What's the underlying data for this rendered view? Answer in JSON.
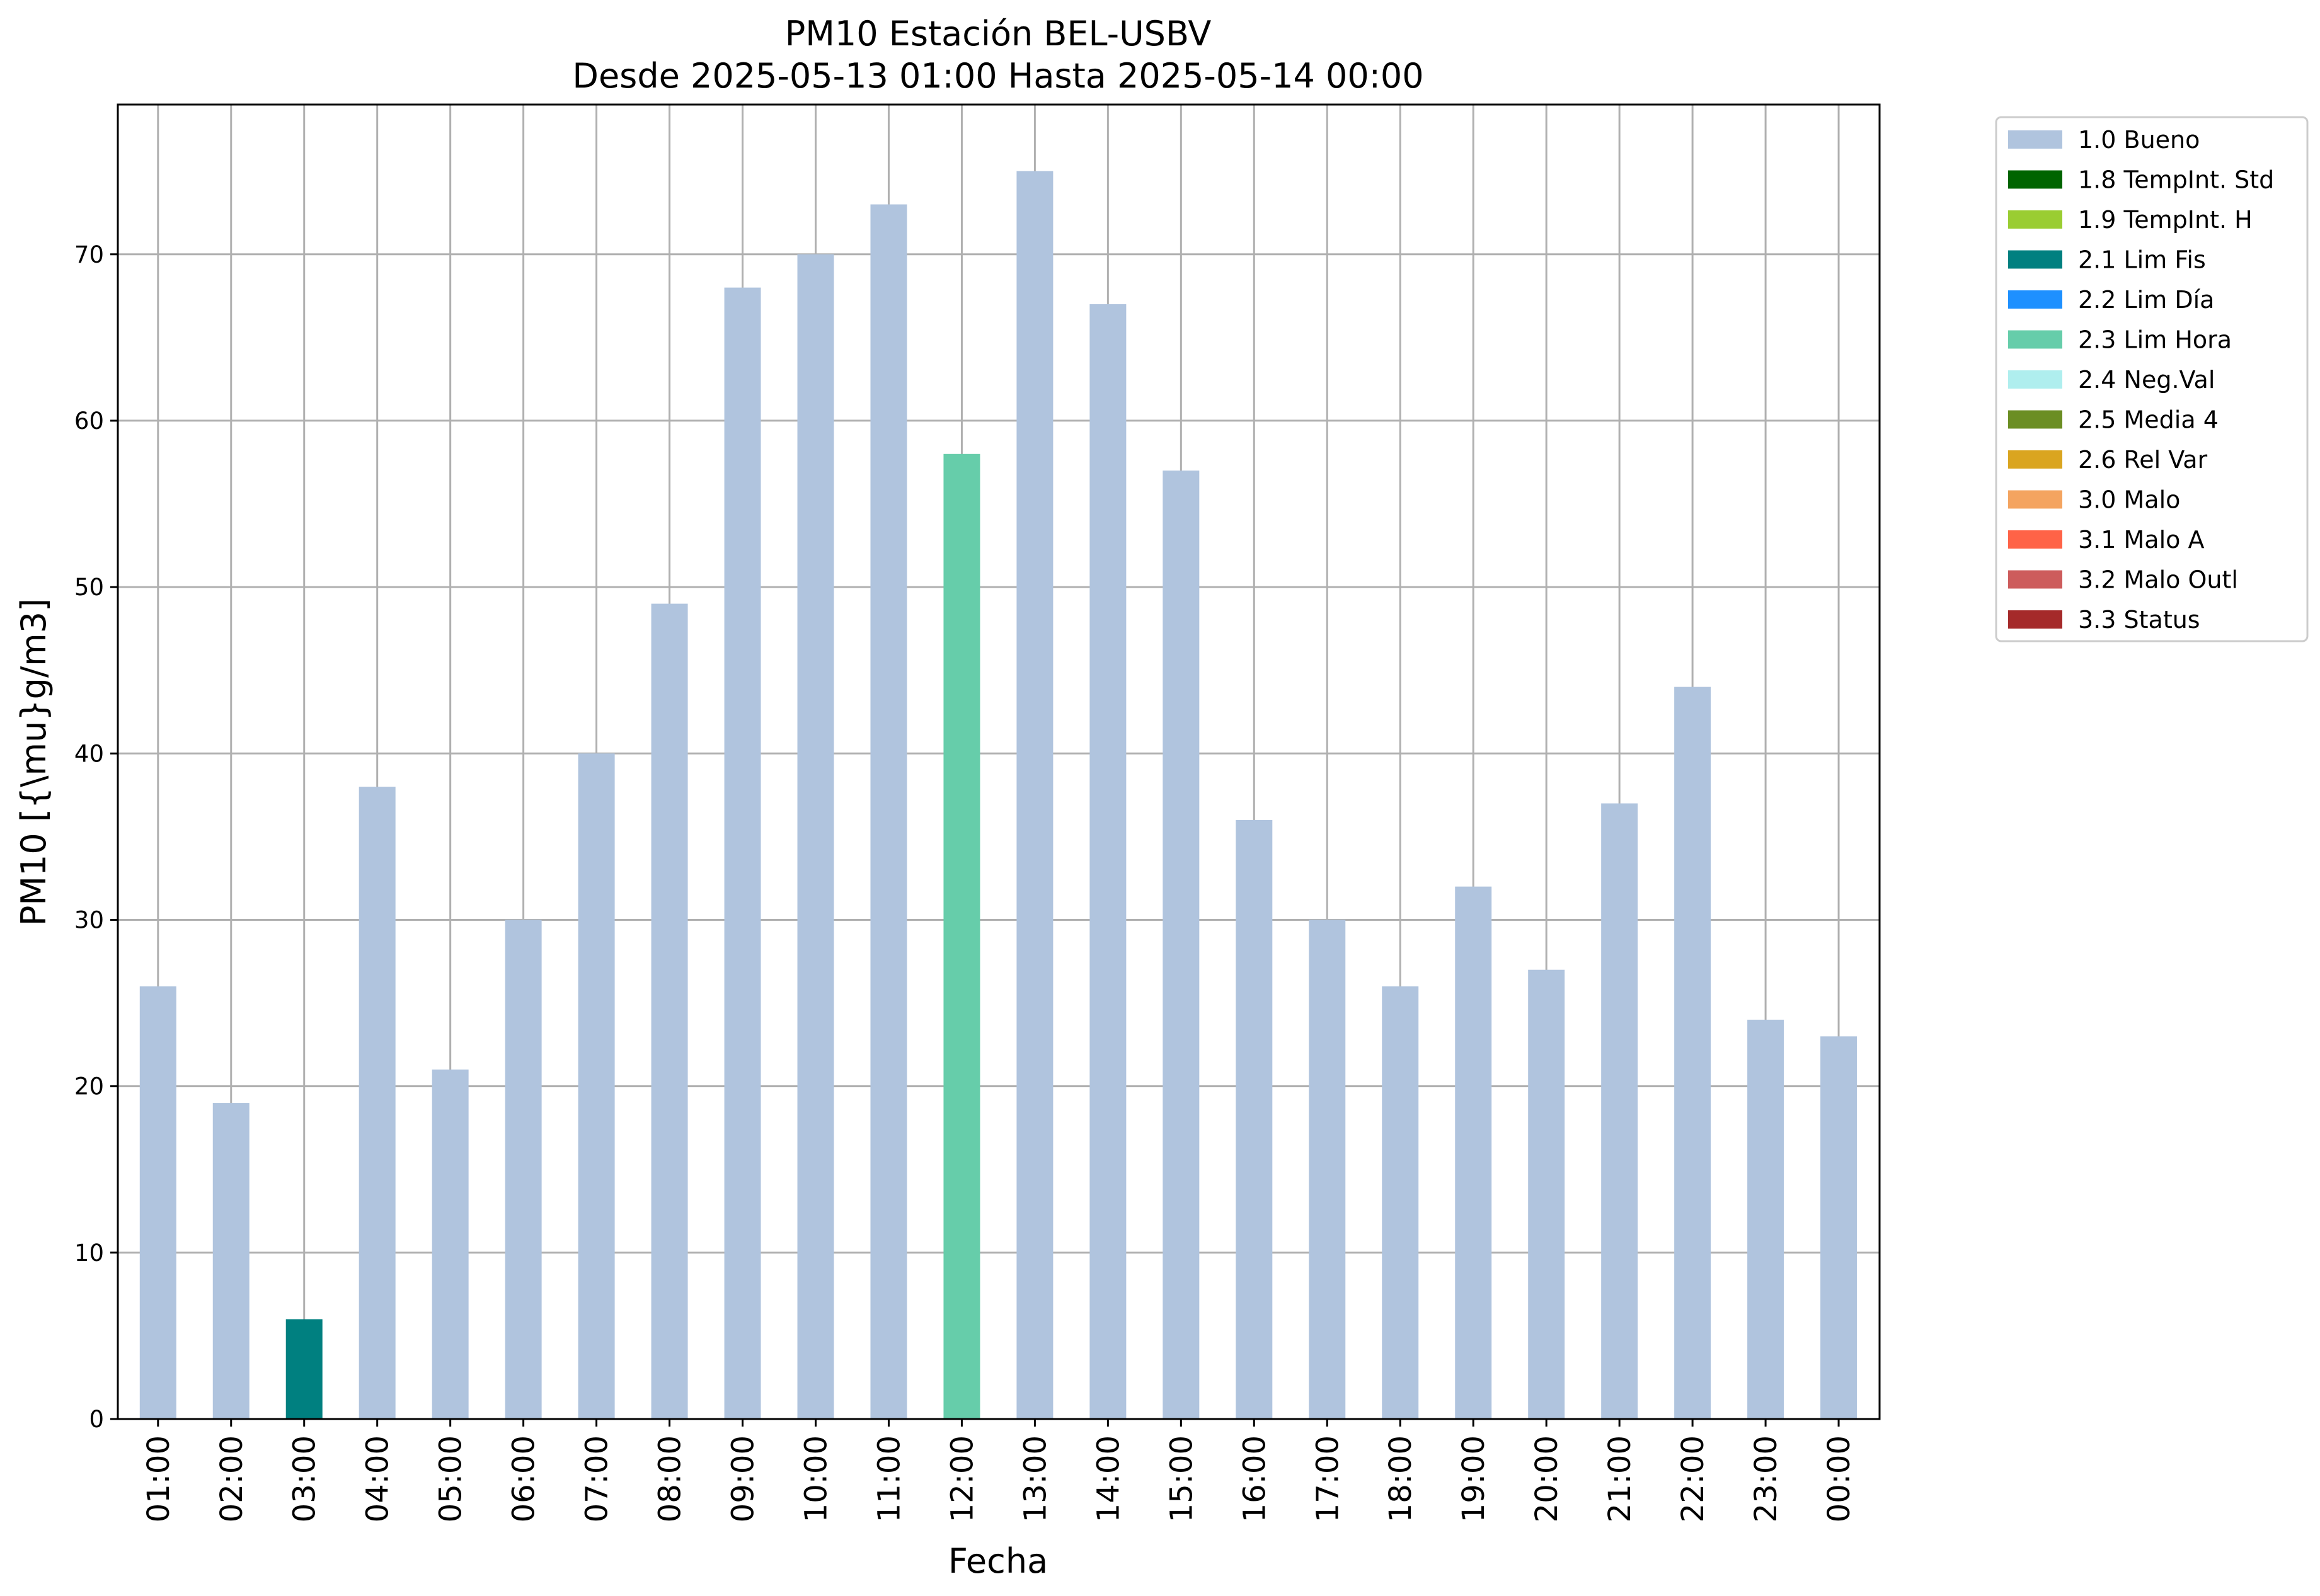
{
  "chart_data": {
    "type": "bar",
    "title": "PM10 Estación BEL-USBV",
    "subtitle": "Desde 2025-05-13 01:00 Hasta 2025-05-14 00:00",
    "xlabel": "Fecha",
    "ylabel": "PM10 [{\\mu}g/m3]",
    "ylim": [
      0,
      79
    ],
    "yticks": [
      0,
      10,
      20,
      30,
      40,
      50,
      60,
      70
    ],
    "grid": true,
    "legend_position": "outside-top-right",
    "categories": [
      "01:00",
      "02:00",
      "03:00",
      "04:00",
      "05:00",
      "06:00",
      "07:00",
      "08:00",
      "09:00",
      "10:00",
      "11:00",
      "12:00",
      "13:00",
      "14:00",
      "15:00",
      "16:00",
      "17:00",
      "18:00",
      "19:00",
      "20:00",
      "21:00",
      "22:00",
      "23:00",
      "00:00"
    ],
    "values": [
      26,
      19,
      6,
      38,
      21,
      30,
      40,
      49,
      68,
      70,
      73,
      58,
      75,
      67,
      57,
      36,
      30,
      26,
      32,
      27,
      37,
      44,
      24,
      23
    ],
    "flags": [
      "1.0 Bueno",
      "1.0 Bueno",
      "2.1 Lim Fis",
      "1.0 Bueno",
      "1.0 Bueno",
      "1.0 Bueno",
      "1.0 Bueno",
      "1.0 Bueno",
      "1.0 Bueno",
      "1.0 Bueno",
      "1.0 Bueno",
      "2.3 Lim Hora",
      "1.0 Bueno",
      "1.0 Bueno",
      "1.0 Bueno",
      "1.0 Bueno",
      "1.0 Bueno",
      "1.0 Bueno",
      "1.0 Bueno",
      "1.0 Bueno",
      "1.0 Bueno",
      "1.0 Bueno",
      "1.0 Bueno",
      "1.0 Bueno"
    ],
    "legend": [
      {
        "label": "1.0 Bueno",
        "color": "#b0c4de"
      },
      {
        "label": "1.8 TempInt. Std",
        "color": "#006400"
      },
      {
        "label": "1.9 TempInt. H",
        "color": "#9acd32"
      },
      {
        "label": "2.1 Lim Fis",
        "color": "#008080"
      },
      {
        "label": "2.2 Lim Día",
        "color": "#1e90ff"
      },
      {
        "label": "2.3 Lim Hora",
        "color": "#66cdaa"
      },
      {
        "label": "2.4 Neg.Val",
        "color": "#afeeee"
      },
      {
        "label": "2.5 Media 4",
        "color": "#6b8e23"
      },
      {
        "label": "2.6 Rel Var",
        "color": "#daa520"
      },
      {
        "label": "3.0 Malo",
        "color": "#f4a460"
      },
      {
        "label": "3.1 Malo A",
        "color": "#ff6347"
      },
      {
        "label": "3.2 Malo Outl",
        "color": "#cd5c5c"
      },
      {
        "label": "3.3 Status",
        "color": "#a52a2a"
      }
    ]
  }
}
